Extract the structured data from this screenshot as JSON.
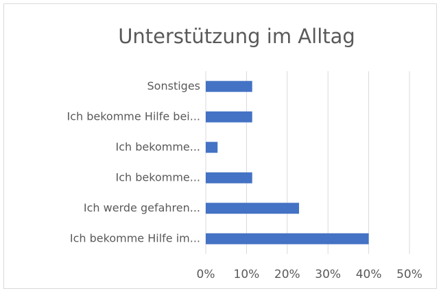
{
  "chart_data": {
    "type": "bar",
    "orientation": "horizontal",
    "title": "Unterstützung im Alltag",
    "categories": [
      "Sonstiges",
      "Ich bekomme Hilfe bei...",
      "Ich bekomme...",
      "Ich bekomme...",
      "Ich werde gefahren...",
      "Ich bekomme Hilfe im..."
    ],
    "values": [
      11.4,
      11.4,
      2.9,
      11.4,
      22.9,
      40
    ],
    "color": "#4472c4",
    "xlim": [
      0,
      50
    ],
    "xticks": [
      {
        "value": 0,
        "label": "0%"
      },
      {
        "value": 10,
        "label": "10%"
      },
      {
        "value": 20,
        "label": "20%"
      },
      {
        "value": 30,
        "label": "30%"
      },
      {
        "value": 40,
        "label": "40%"
      },
      {
        "value": 50,
        "label": "50%"
      }
    ],
    "grid": true
  }
}
